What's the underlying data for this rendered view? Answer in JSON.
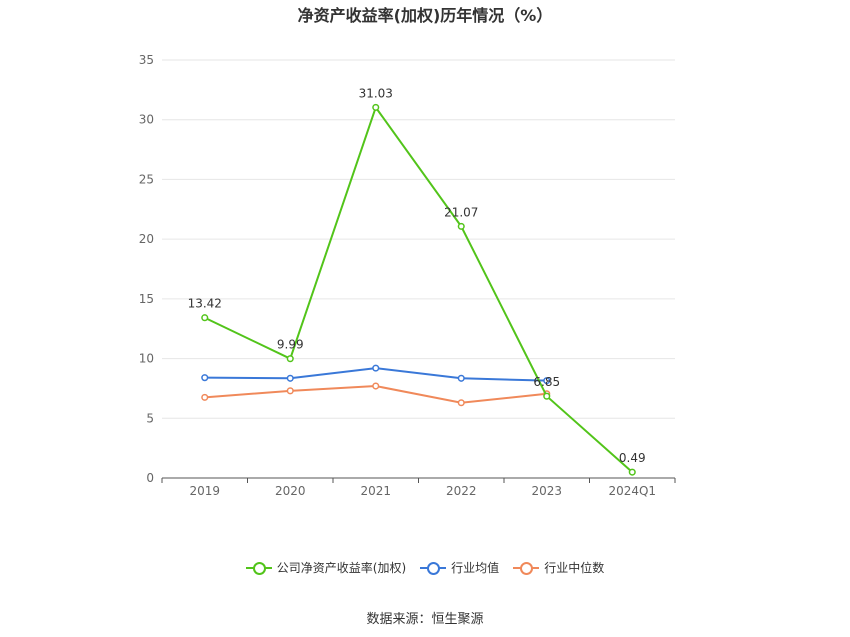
{
  "chart_data": {
    "type": "line",
    "title": "净资产收益率(加权)历年情况（%）",
    "categories": [
      "2019",
      "2020",
      "2021",
      "2022",
      "2023",
      "2024Q1"
    ],
    "ylim": [
      0,
      35
    ],
    "yticks": [
      0,
      5,
      10,
      15,
      20,
      25,
      30,
      35
    ],
    "grid": true,
    "legend_position": "bottom",
    "series": [
      {
        "name": "公司净资产收益率(加权)",
        "color": "#52c41a",
        "values": [
          13.42,
          9.99,
          31.03,
          21.07,
          6.85,
          0.49
        ],
        "labels": [
          "13.42",
          "9.99",
          "31.03",
          "21.07",
          "6.85",
          "0.49"
        ]
      },
      {
        "name": "行业均值",
        "color": "#3a78d8",
        "values": [
          8.4,
          8.35,
          9.2,
          8.35,
          8.15,
          null
        ]
      },
      {
        "name": "行业中位数",
        "color": "#f0895a",
        "values": [
          6.75,
          7.3,
          7.7,
          6.3,
          7.05,
          null
        ]
      }
    ]
  },
  "footer": {
    "source": "数据来源：恒生聚源"
  }
}
